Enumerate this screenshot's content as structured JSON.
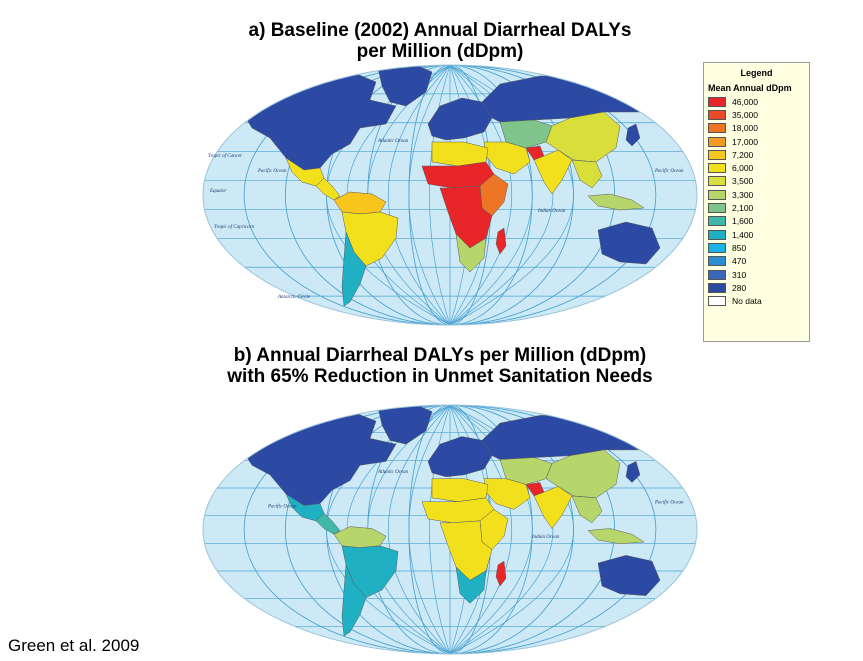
{
  "title_a": "a) Baseline (2002) Annual Diarrheal DALYs\nper Million (dDpm)",
  "title_a_line1": "a) Baseline (2002) Annual Diarrheal DALYs",
  "title_a_line2": "per Million (dDpm)",
  "title_b_line1": "b) Annual Diarrheal DALYs per Million (dDpm)",
  "title_b_line2": "with 65% Reduction in Unmet Sanitation Needs",
  "credit": "Green et al. 2009",
  "legend": {
    "title": "Legend",
    "subtitle": "Mean Annual dDpm",
    "items": [
      {
        "label": "46,000",
        "color": "#e8262a"
      },
      {
        "label": "35,000",
        "color": "#ea4a25"
      },
      {
        "label": "18,000",
        "color": "#ef7526"
      },
      {
        "label": "17,000",
        "color": "#f19a24"
      },
      {
        "label": "7,200",
        "color": "#f7c51c"
      },
      {
        "label": "6,000",
        "color": "#f3e01c"
      },
      {
        "label": "3,500",
        "color": "#d8de3a"
      },
      {
        "label": "3,300",
        "color": "#b6d56a"
      },
      {
        "label": "2,100",
        "color": "#7ec48b"
      },
      {
        "label": "1,600",
        "color": "#3fb7a9"
      },
      {
        "label": "1,400",
        "color": "#1fb0c4"
      },
      {
        "label": "850",
        "color": "#19b3e6"
      },
      {
        "label": "470",
        "color": "#2d8fd2"
      },
      {
        "label": "310",
        "color": "#3a66b8"
      },
      {
        "label": "280",
        "color": "#2c49a3"
      },
      {
        "label": "No data",
        "color": "#ffffff"
      }
    ]
  },
  "map_colors": {
    "ocean": "#cde9f5",
    "graticule": "#4aa3d4",
    "border": "#5a5a5a"
  },
  "map_a": {
    "ocean_labels": [
      "Atlantic Ocean",
      "Pacific Ocean",
      "Indian Ocean",
      "Pacific Ocean",
      "Tropic of Cancer",
      "Equator",
      "Tropic of Capricorn",
      "Antarctic Circle"
    ],
    "regions": {
      "north_america": "#2c49a3",
      "greenland": "#2c49a3",
      "mexico": "#f3e01c",
      "central_america": "#f3e01c",
      "south_america_north": "#f7c51c",
      "brazil": "#f3e01c",
      "south_america_south": "#1fb0c4",
      "europe": "#2c49a3",
      "russia": "#2c49a3",
      "central_asia": "#7ec48b",
      "china": "#d8de3a",
      "middle_east": "#f3e01c",
      "north_africa": "#f3e01c",
      "sahel": "#e8262a",
      "central_africa": "#e8262a",
      "east_africa": "#ef7526",
      "southern_africa": "#b6d56a",
      "madagascar": "#e8262a",
      "india": "#f3e01c",
      "afghanistan": "#e8262a",
      "southeast_asia": "#d8de3a",
      "indonesia": "#b6d56a",
      "japan": "#2c49a3",
      "australia": "#2c49a3"
    }
  },
  "map_b": {
    "ocean_labels": [
      "Atlantic Ocean",
      "Pacific Ocean",
      "Indian Ocean",
      "Pacific Ocean"
    ],
    "regions": {
      "north_america": "#2c49a3",
      "greenland": "#2c49a3",
      "mexico": "#1fb0c4",
      "central_america": "#3fb7a9",
      "south_america_north": "#b6d56a",
      "brazil": "#1fb0c4",
      "south_america_south": "#1fb0c4",
      "europe": "#2c49a3",
      "russia": "#2c49a3",
      "central_asia": "#b6d56a",
      "china": "#b6d56a",
      "middle_east": "#f3e01c",
      "north_africa": "#f3e01c",
      "sahel": "#f3e01c",
      "central_africa": "#f3e01c",
      "east_africa": "#f3e01c",
      "southern_africa": "#1fb0c4",
      "madagascar": "#e8262a",
      "india": "#f3e01c",
      "afghanistan": "#e8262a",
      "southeast_asia": "#b6d56a",
      "indonesia": "#b6d56a",
      "japan": "#2c49a3",
      "australia": "#2c49a3"
    }
  }
}
